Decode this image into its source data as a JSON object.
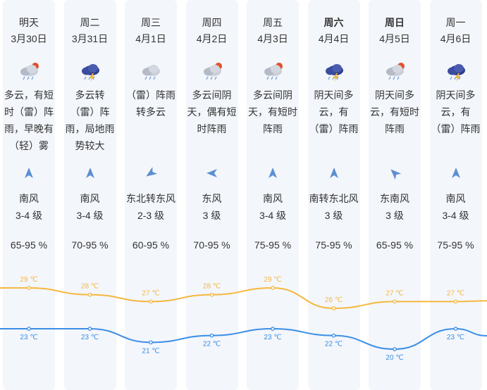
{
  "days": [
    {
      "day": "明天",
      "date": "3月30日",
      "bold": false,
      "icon": "cloud-sun-rain-icon",
      "desc": "多云，有短时（雷）阵雨，早晚有（轻）雾",
      "wind_dir": "南风",
      "wind_lv": "3-4 级",
      "arrow": "arrow-up-icon",
      "humidity": "65-95 %"
    },
    {
      "day": "周二",
      "date": "3月31日",
      "bold": false,
      "icon": "thunderstorm-icon",
      "desc": "多云转（雷）阵雨，局地雨势较大",
      "wind_dir": "南风",
      "wind_lv": "3-4 级",
      "arrow": "arrow-up-icon",
      "humidity": "70-95 %"
    },
    {
      "day": "周三",
      "date": "4月1日",
      "bold": false,
      "icon": "cloud-rain-icon",
      "desc": "（雷）阵雨转多云",
      "wind_dir": "东北转东风",
      "wind_lv": "2-3 级",
      "arrow": "arrow-southwest-icon",
      "humidity": "60-95 %"
    },
    {
      "day": "周四",
      "date": "4月2日",
      "bold": false,
      "icon": "cloud-sun-rain-icon",
      "desc": "多云间阴天，偶有短时阵雨",
      "wind_dir": "东风",
      "wind_lv": "3 级",
      "arrow": "arrow-west-icon",
      "humidity": "70-95 %"
    },
    {
      "day": "周五",
      "date": "4月3日",
      "bold": false,
      "icon": "cloud-sun-rain-icon",
      "desc": "多云间阴天，有短时阵雨",
      "wind_dir": "南风",
      "wind_lv": "3-4 级",
      "arrow": "arrow-up-icon",
      "humidity": "75-95 %"
    },
    {
      "day": "周六",
      "date": "4月4日",
      "bold": true,
      "icon": "thunderstorm-icon",
      "desc": "阴天间多云，有（雷）阵雨",
      "wind_dir": "南转东北风",
      "wind_lv": "3 级",
      "arrow": "arrow-up-icon",
      "humidity": "75-95 %"
    },
    {
      "day": "周日",
      "date": "4月5日",
      "bold": true,
      "icon": "cloud-sun-rain-icon",
      "desc": "阴天间多云，有短时阵雨",
      "wind_dir": "东南风",
      "wind_lv": "3 级",
      "arrow": "arrow-northwest-icon",
      "humidity": "65-95 %"
    },
    {
      "day": "周一",
      "date": "4月6日",
      "bold": false,
      "icon": "thunderstorm-icon",
      "desc": "阴天间多云，有（雷）阵雨",
      "wind_dir": "南风",
      "wind_lv": "3-4 级",
      "arrow": "arrow-up-icon",
      "humidity": "75-95 %"
    }
  ],
  "chart_data": {
    "type": "line",
    "categories": [
      "3月30日",
      "3月31日",
      "4月1日",
      "4月2日",
      "4月3日",
      "4月4日",
      "4月5日",
      "4月6日"
    ],
    "series": [
      {
        "values": [
          29,
          28,
          27,
          28,
          29,
          26,
          27,
          27
        ],
        "color": "#f5b83d"
      },
      {
        "values": [
          23,
          23,
          21,
          22,
          23,
          22,
          20,
          23
        ],
        "color": "#3a8ee6"
      }
    ],
    "unit": "℃"
  },
  "colors": {
    "column_bg": "#f3f6fb",
    "high": "#f5b83d",
    "low": "#3a8ee6",
    "arrow": "#5b8fd1"
  }
}
